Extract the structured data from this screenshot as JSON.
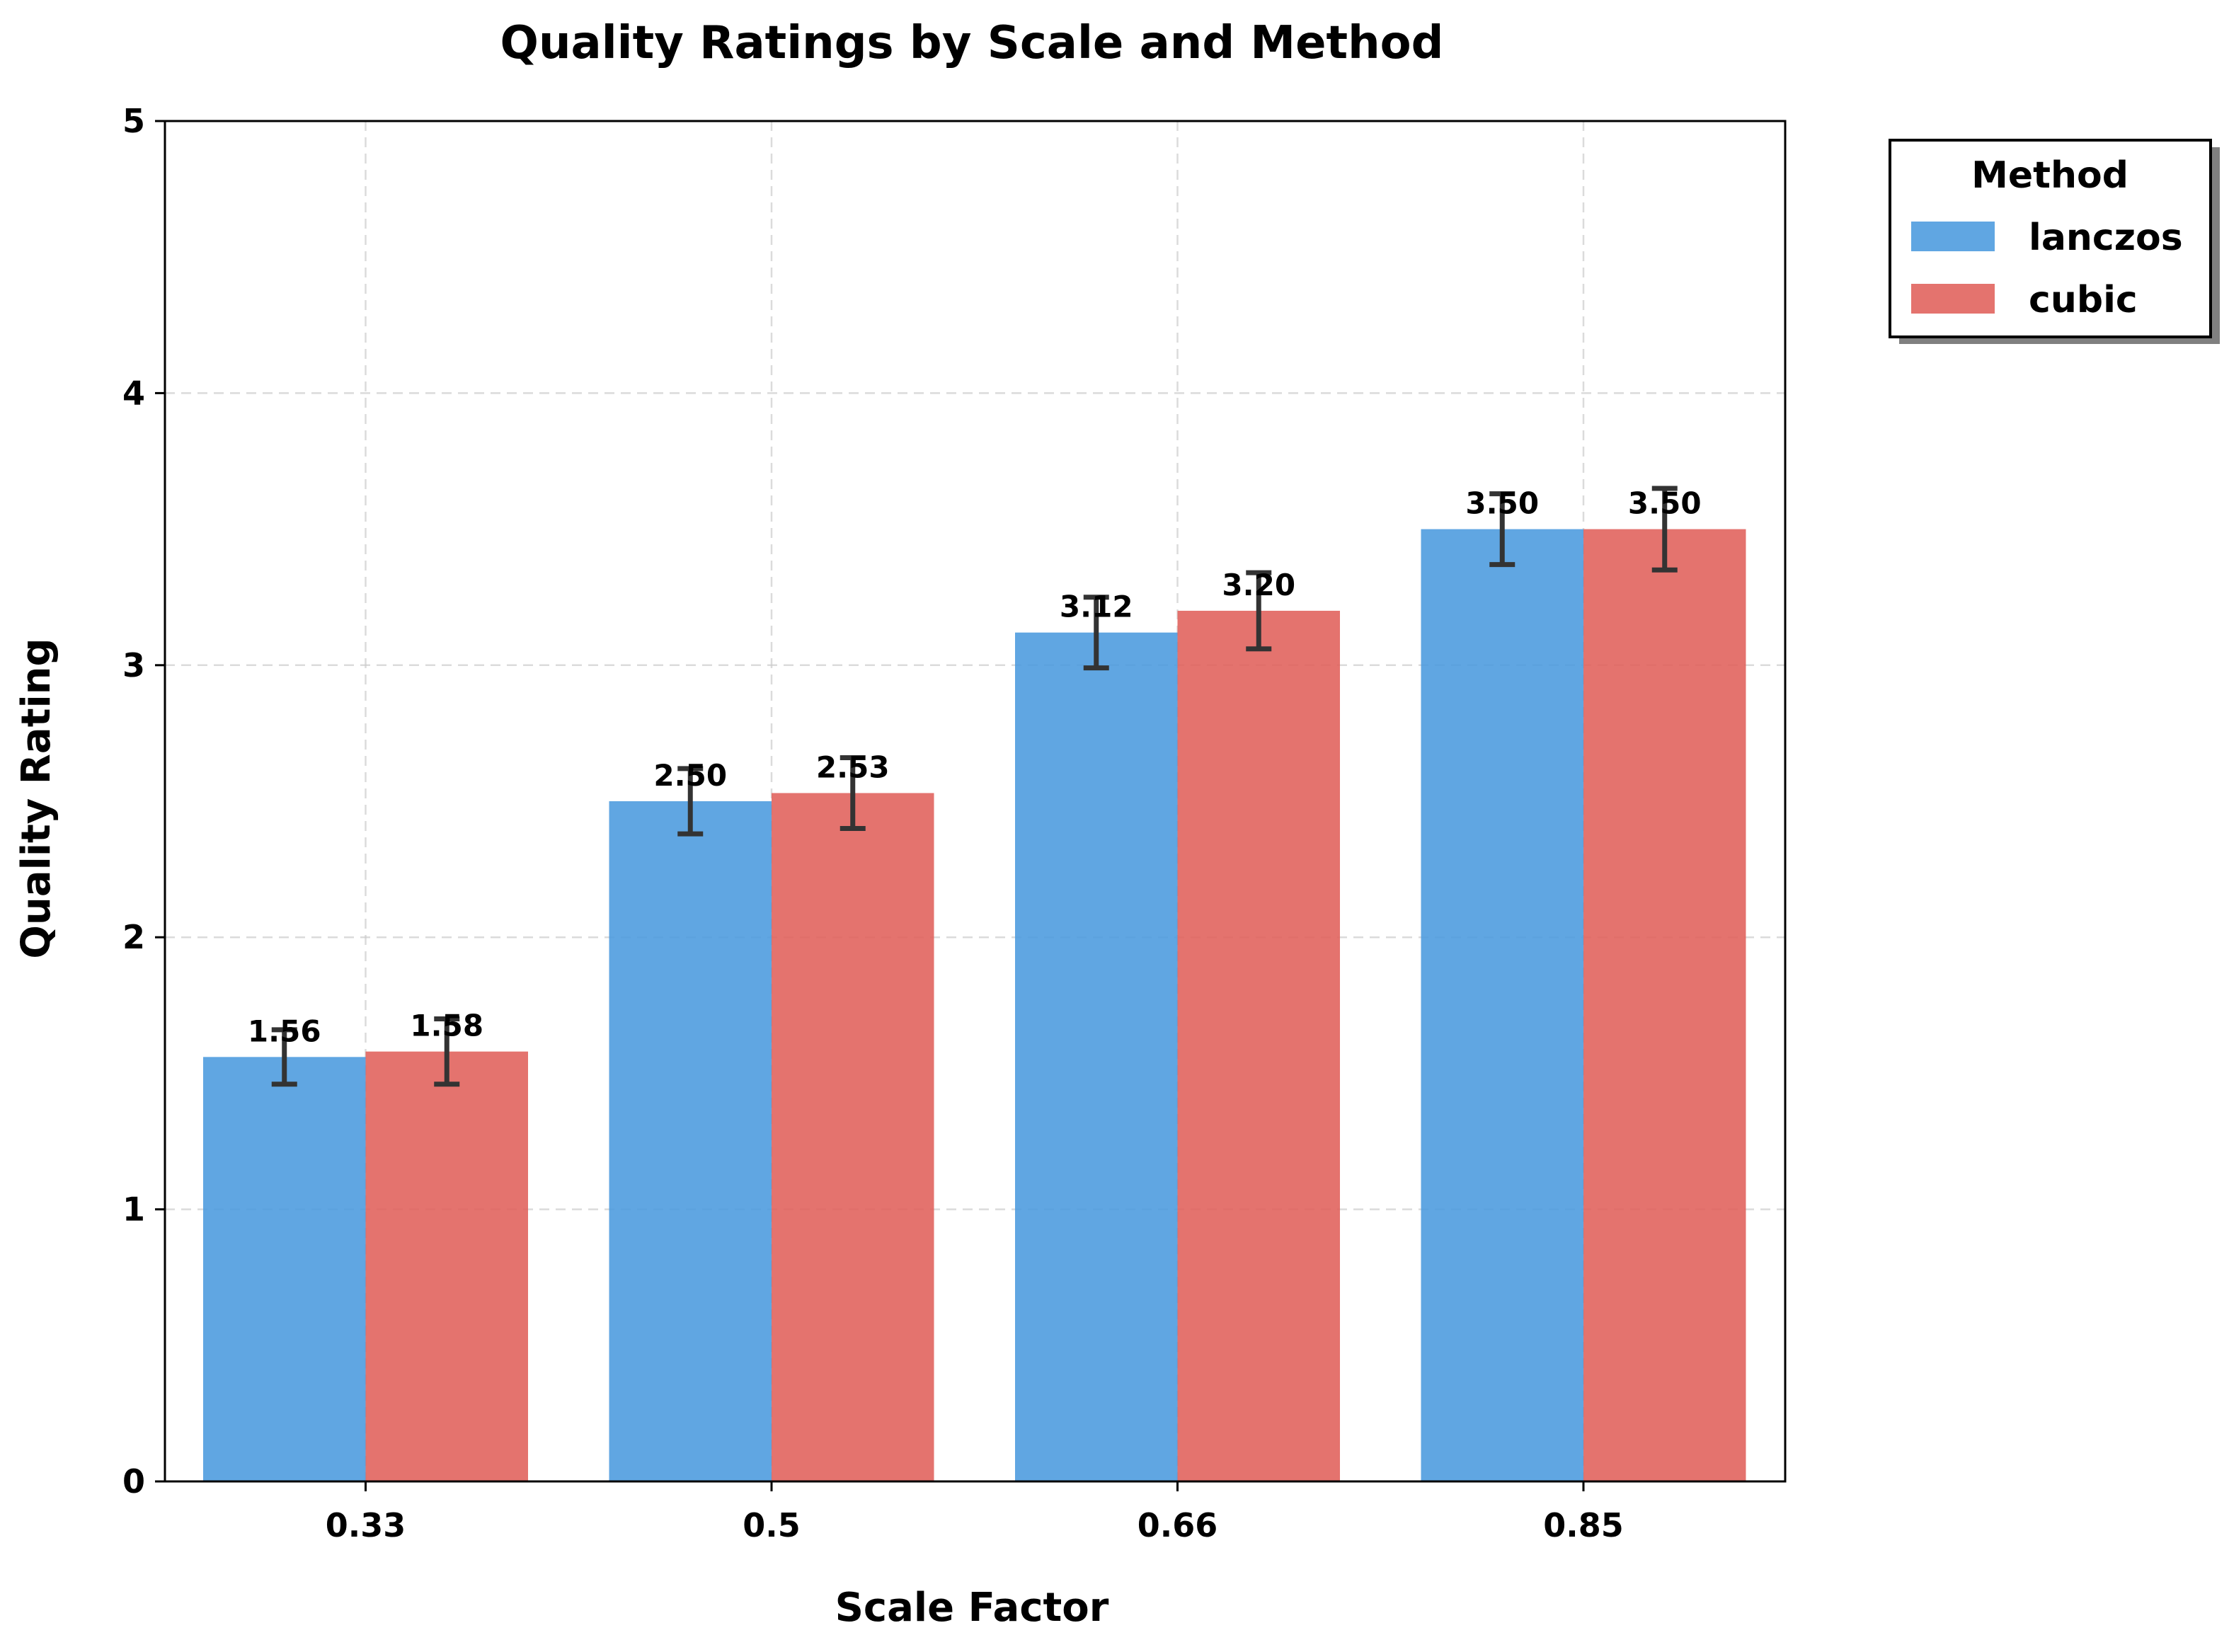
{
  "chart_data": {
    "type": "bar",
    "title": "Quality Ratings by Scale and Method",
    "xlabel": "Scale Factor",
    "ylabel": "Quality Rating",
    "categories": [
      "0.33",
      "0.5",
      "0.66",
      "0.85"
    ],
    "ylim": [
      0,
      5
    ],
    "yticks": [
      "0",
      "1",
      "2",
      "3",
      "4",
      "5"
    ],
    "grid": true,
    "legend": {
      "title": "Method",
      "placement": "outside-upper-right"
    },
    "series": [
      {
        "name": "lanczos",
        "color": "#4a9ade",
        "values": [
          1.56,
          2.5,
          3.12,
          3.5
        ],
        "errors": [
          0.1,
          0.12,
          0.13,
          0.13
        ],
        "labels": [
          "1.56",
          "2.50",
          "3.12",
          "3.50"
        ]
      },
      {
        "name": "cubic",
        "color": "#e0605a",
        "values": [
          1.58,
          2.53,
          3.2,
          3.5
        ],
        "errors": [
          0.12,
          0.13,
          0.14,
          0.15
        ],
        "labels": [
          "1.58",
          "2.53",
          "3.20",
          "3.50"
        ]
      }
    ]
  }
}
